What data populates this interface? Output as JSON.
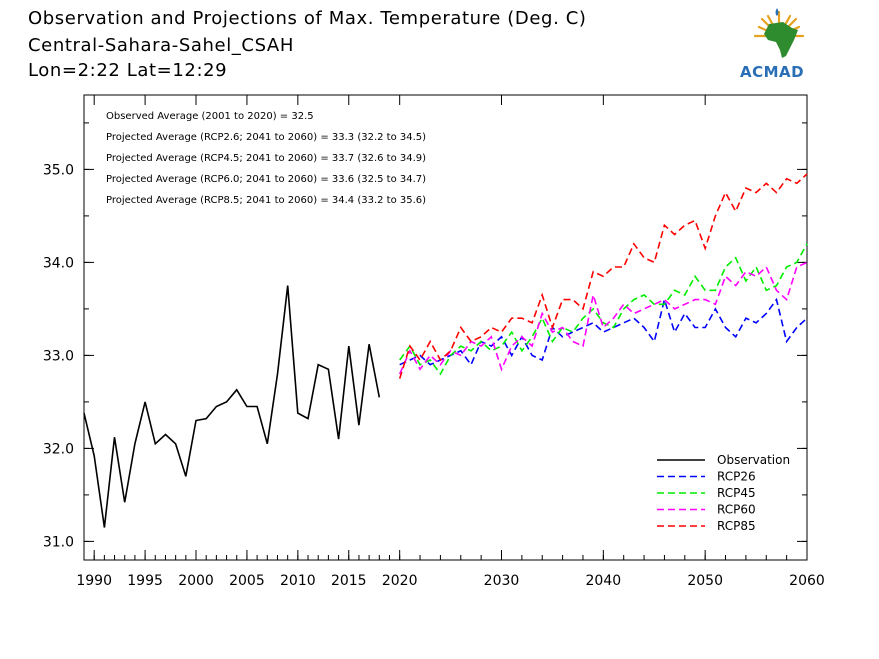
{
  "header": {
    "title": "Observation and Projections of Max. Temperature (Deg. C)",
    "region": "Central-Sahara-Sahel_CSAH",
    "location": "Lon=2:22   Lat=12:29"
  },
  "logo": {
    "text": "ACMAD",
    "icon": "acmad-africa-logo-icon"
  },
  "annotations": [
    "Observed Average (2001 to 2020) = 32.5",
    "Projected Average (RCP2.6; 2041 to 2060) = 33.3 (32.2 to 34.5)",
    "Projected Average (RCP4.5; 2041 to 2060) = 33.7 (32.6 to 34.9)",
    "Projected Average (RCP6.0; 2041 to 2060) = 33.6 (32.5 to 34.7)",
    "Projected Average (RCP8.5; 2041 to 2060) = 34.4 (33.2 to 35.6)"
  ],
  "chart_data": {
    "type": "line",
    "title": "Observation and Projections of Max. Temperature (Deg. C)",
    "xlim": [
      1989,
      2060
    ],
    "ylim": [
      30.8,
      35.8
    ],
    "x_ticks": [
      {
        "v": 1990,
        "label": "1990"
      },
      {
        "v": 1995,
        "label": "1995"
      },
      {
        "v": 2000,
        "label": "2000"
      },
      {
        "v": 2005,
        "label": "2005"
      },
      {
        "v": 2010,
        "label": "2010"
      },
      {
        "v": 2015,
        "label": "2015"
      },
      {
        "v": 2020,
        "label": "2020"
      },
      {
        "v": 2030,
        "label": "2030"
      },
      {
        "v": 2040,
        "label": "2040"
      },
      {
        "v": 2050,
        "label": "2050"
      },
      {
        "v": 2060,
        "label": "2060"
      }
    ],
    "y_ticks": [
      {
        "v": 31.0,
        "label": "31.0"
      },
      {
        "v": 32.0,
        "label": "32.0"
      },
      {
        "v": 33.0,
        "label": "33.0"
      },
      {
        "v": 34.0,
        "label": "34.0"
      },
      {
        "v": 35.0,
        "label": "35.0"
      }
    ],
    "grid": false,
    "legend_position": "bottom-right",
    "series": [
      {
        "name": "Observation",
        "color": "#000000",
        "dash": "solid",
        "x": [
          1989,
          1990,
          1991,
          1992,
          1993,
          1994,
          1995,
          1996,
          1997,
          1998,
          1999,
          2000,
          2001,
          2002,
          2003,
          2004,
          2005,
          2006,
          2007,
          2008,
          2009,
          2010,
          2011,
          2012,
          2013,
          2014,
          2015,
          2016,
          2017,
          2018,
          2019
        ],
        "y": [
          32.38,
          31.92,
          31.15,
          32.12,
          31.42,
          32.05,
          32.5,
          32.05,
          32.15,
          32.05,
          31.7,
          32.3,
          32.32,
          32.45,
          32.5,
          32.63,
          32.45,
          32.45,
          32.05,
          32.8,
          33.75,
          32.38,
          32.32,
          32.9,
          32.85,
          32.1,
          33.1,
          32.25,
          33.12,
          32.55,
          null
        ]
      },
      {
        "name": "RCP26",
        "color": "#0000ff",
        "dash": "dashed",
        "x": [
          2020,
          2021,
          2022,
          2023,
          2024,
          2025,
          2026,
          2027,
          2028,
          2029,
          2030,
          2031,
          2032,
          2033,
          2034,
          2035,
          2036,
          2037,
          2038,
          2039,
          2040,
          2041,
          2042,
          2043,
          2044,
          2045,
          2046,
          2047,
          2048,
          2049,
          2050,
          2051,
          2052,
          2053,
          2054,
          2055,
          2056,
          2057,
          2058,
          2059,
          2060
        ],
        "y": [
          32.9,
          32.95,
          33.0,
          32.9,
          32.95,
          33.0,
          33.05,
          32.9,
          33.15,
          33.1,
          33.2,
          33.0,
          33.2,
          33.0,
          32.95,
          33.3,
          33.2,
          33.25,
          33.3,
          33.35,
          33.25,
          33.3,
          33.35,
          33.4,
          33.3,
          33.15,
          33.6,
          33.25,
          33.45,
          33.3,
          33.3,
          33.5,
          33.3,
          33.2,
          33.4,
          33.35,
          33.45,
          33.6,
          33.15,
          33.3,
          33.4
        ]
      },
      {
        "name": "RCP45",
        "color": "#00ee00",
        "dash": "dashed",
        "x": [
          2020,
          2021,
          2022,
          2023,
          2024,
          2025,
          2026,
          2027,
          2028,
          2029,
          2030,
          2031,
          2032,
          2033,
          2034,
          2035,
          2036,
          2037,
          2038,
          2039,
          2040,
          2041,
          2042,
          2043,
          2044,
          2045,
          2046,
          2047,
          2048,
          2049,
          2050,
          2051,
          2052,
          2053,
          2054,
          2055,
          2056,
          2057,
          2058,
          2059,
          2060
        ],
        "y": [
          32.95,
          33.1,
          32.9,
          32.95,
          32.8,
          33.0,
          33.1,
          33.05,
          33.15,
          33.05,
          33.1,
          33.25,
          33.05,
          33.2,
          33.4,
          33.15,
          33.3,
          33.25,
          33.4,
          33.5,
          33.35,
          33.3,
          33.5,
          33.6,
          33.65,
          33.55,
          33.55,
          33.7,
          33.65,
          33.85,
          33.7,
          33.7,
          33.95,
          34.05,
          33.8,
          33.95,
          33.7,
          33.75,
          33.95,
          34.0,
          34.2
        ]
      },
      {
        "name": "RCP60",
        "color": "#ff00ff",
        "dash": "dashed",
        "x": [
          2020,
          2021,
          2022,
          2023,
          2024,
          2025,
          2026,
          2027,
          2028,
          2029,
          2030,
          2031,
          2032,
          2033,
          2034,
          2035,
          2036,
          2037,
          2038,
          2039,
          2040,
          2041,
          2042,
          2043,
          2044,
          2045,
          2046,
          2047,
          2048,
          2049,
          2050,
          2051,
          2052,
          2053,
          2054,
          2055,
          2056,
          2057,
          2058,
          2059,
          2060
        ],
        "y": [
          32.8,
          33.05,
          32.85,
          33.0,
          32.9,
          33.05,
          33.0,
          33.15,
          33.1,
          33.2,
          32.85,
          33.1,
          33.2,
          33.1,
          33.45,
          33.25,
          33.3,
          33.15,
          33.1,
          33.65,
          33.3,
          33.4,
          33.55,
          33.45,
          33.5,
          33.55,
          33.6,
          33.5,
          33.55,
          33.6,
          33.6,
          33.55,
          33.85,
          33.75,
          33.9,
          33.85,
          33.95,
          33.7,
          33.6,
          33.95,
          34.0
        ]
      },
      {
        "name": "RCP85",
        "color": "#ff0000",
        "dash": "dashed",
        "x": [
          2020,
          2021,
          2022,
          2023,
          2024,
          2025,
          2026,
          2027,
          2028,
          2029,
          2030,
          2031,
          2032,
          2033,
          2034,
          2035,
          2036,
          2037,
          2038,
          2039,
          2040,
          2041,
          2042,
          2043,
          2044,
          2045,
          2046,
          2047,
          2048,
          2049,
          2050,
          2051,
          2052,
          2053,
          2054,
          2055,
          2056,
          2057,
          2058,
          2059,
          2060
        ],
        "y": [
          32.75,
          33.1,
          32.95,
          33.15,
          32.95,
          33.05,
          33.3,
          33.15,
          33.2,
          33.3,
          33.25,
          33.4,
          33.4,
          33.35,
          33.65,
          33.3,
          33.6,
          33.6,
          33.5,
          33.9,
          33.85,
          33.95,
          33.95,
          34.2,
          34.05,
          34.0,
          34.4,
          34.3,
          34.4,
          34.45,
          34.15,
          34.5,
          34.75,
          34.55,
          34.8,
          34.75,
          34.85,
          34.75,
          34.9,
          34.85,
          34.95
        ]
      }
    ]
  }
}
